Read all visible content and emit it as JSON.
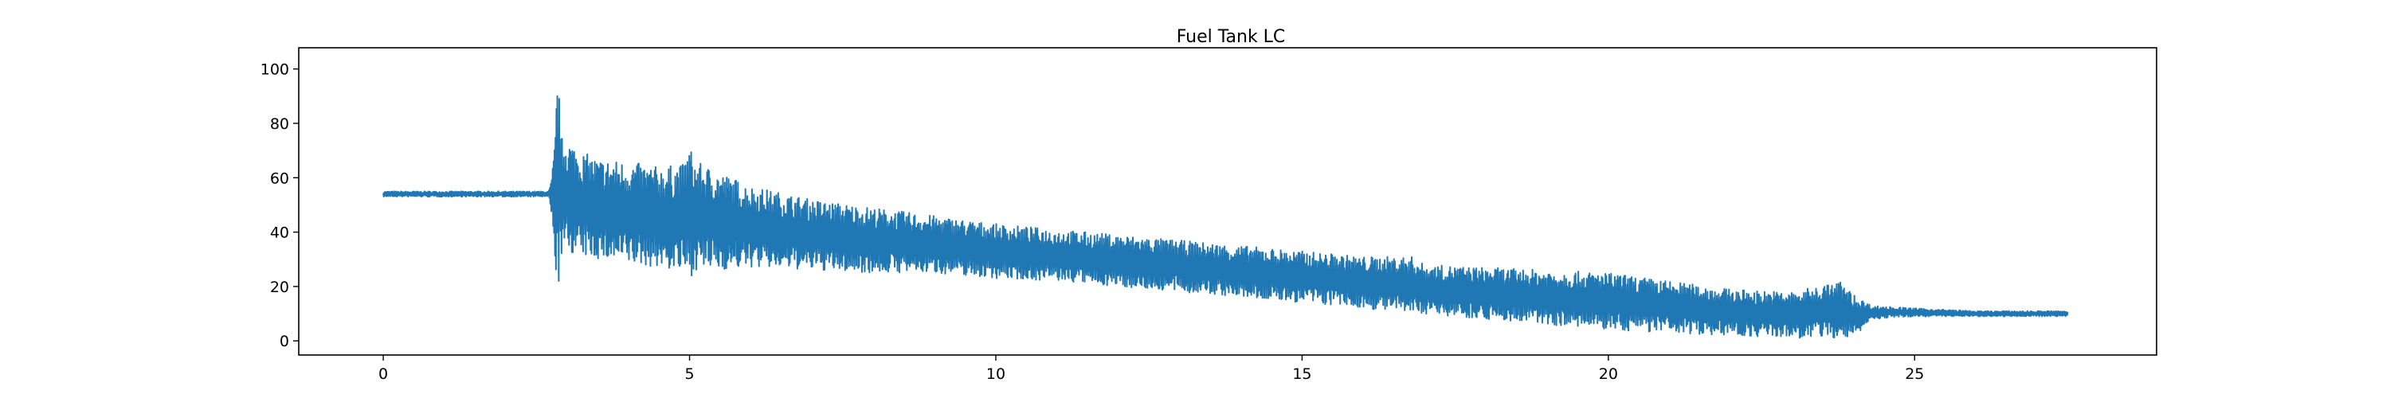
{
  "chart_data": {
    "type": "line",
    "title": "Fuel Tank LC",
    "xlabel": "",
    "ylabel": "",
    "xlim": [
      -1.38,
      28.95
    ],
    "ylim": [
      -5.2,
      107.8
    ],
    "grid": false,
    "legend": "none",
    "line_color": "#1f77b4",
    "x_ticks": [
      {
        "value": 0,
        "label": "0"
      },
      {
        "value": 5,
        "label": "5"
      },
      {
        "value": 10,
        "label": "10"
      },
      {
        "value": 15,
        "label": "15"
      },
      {
        "value": 20,
        "label": "20"
      },
      {
        "value": 25,
        "label": "25"
      }
    ],
    "y_ticks": [
      {
        "value": 0,
        "label": "0"
      },
      {
        "value": 20,
        "label": "20"
      },
      {
        "value": 40,
        "label": "40"
      },
      {
        "value": 60,
        "label": "60"
      },
      {
        "value": 80,
        "label": "80"
      },
      {
        "value": 100,
        "label": "100"
      }
    ],
    "envelope": {
      "x": [
        0,
        2.7,
        2.75,
        2.8,
        2.85,
        2.9,
        3.0,
        3.2,
        3.5,
        4.0,
        4.5,
        4.9,
        5.0,
        5.1,
        5.5,
        6,
        7,
        8,
        9,
        10,
        11,
        12,
        13,
        14,
        15,
        16,
        16.8,
        17,
        18,
        19,
        20,
        21,
        22,
        23,
        23.8,
        24.0,
        24.3,
        25,
        26,
        27.5
      ],
      "upper": [
        55,
        55,
        60,
        73,
        102,
        75,
        75,
        70,
        67,
        66,
        64,
        65,
        72,
        66,
        62,
        57,
        52,
        49,
        46,
        43,
        41,
        39,
        37,
        35,
        33,
        31,
        31,
        28,
        27,
        26,
        25,
        22,
        19,
        18,
        22,
        17,
        13,
        12,
        11,
        11
      ],
      "lower": [
        53,
        53,
        45,
        29,
        17,
        30,
        33,
        31,
        30,
        28,
        27,
        25,
        23,
        26,
        26,
        27,
        26,
        25,
        25,
        23,
        22,
        20,
        18,
        16,
        14,
        12,
        10,
        10,
        8,
        6,
        4,
        3,
        2,
        1,
        1,
        1,
        8,
        9,
        9,
        9
      ]
    }
  }
}
